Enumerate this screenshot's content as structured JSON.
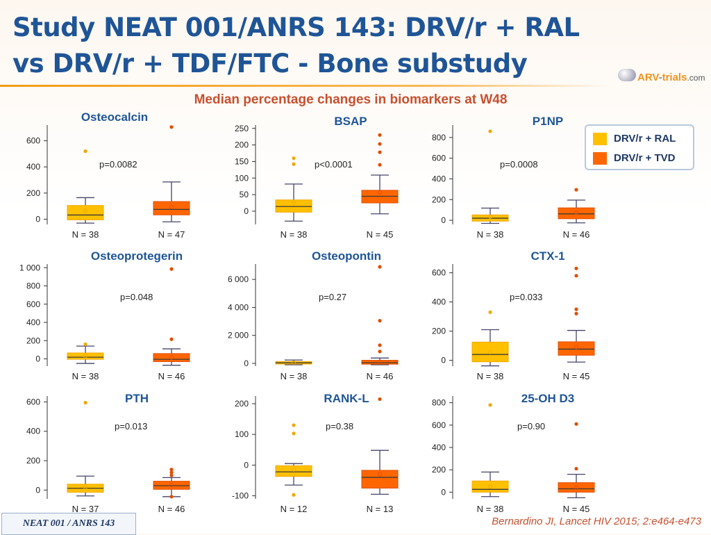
{
  "header": {
    "title": "Study NEAT 001/ANRS 143: DRV/r + RAL vs DRV/r + TDF/FTC - Bone substudy",
    "logo": {
      "brand": "ARV",
      "dash": "-",
      "suffix": "trials",
      "domain": ".com"
    }
  },
  "subtitle": "Median percentage changes in biomarkers at W48",
  "legend": {
    "items": [
      {
        "label": "DRV/r + RAL",
        "color": "#FFC000"
      },
      {
        "label": "DRV/r + TVD",
        "color": "#FF6600"
      }
    ]
  },
  "colors": {
    "ral_fill": "#FFC000",
    "ral_stroke": "#F0A800",
    "tvd_fill": "#FF6600",
    "tvd_stroke": "#E04E00",
    "whisker": "#44446a",
    "axis": "#333333",
    "median": "#3a3a3a"
  },
  "chart_data": [
    {
      "type": "boxplot",
      "title": "Osteocalcin",
      "pvalue": "p=0.0082",
      "ylim": [
        -40,
        720
      ],
      "yticks": [
        {
          "v": 0,
          "l": "0"
        },
        {
          "v": 200,
          "l": "200"
        },
        {
          "v": 400,
          "l": "400"
        },
        {
          "v": 600,
          "l": "600"
        }
      ],
      "groups": [
        {
          "series": "DRV/r + RAL",
          "n_label": "N = 38",
          "whisker_low": -30,
          "q1": -5,
          "median": 32,
          "q3": 105,
          "whisker_high": 165,
          "mean": 65,
          "outliers": [
            520
          ]
        },
        {
          "series": "DRV/r + TVD",
          "n_label": "N = 47",
          "whisker_low": -20,
          "q1": 33,
          "median": 75,
          "q3": 135,
          "whisker_high": 285,
          "mean": 92,
          "outliers": [
            705
          ]
        }
      ]
    },
    {
      "type": "boxplot",
      "title": "BSAP",
      "pvalue": "p<0.0001",
      "ylim": [
        -40,
        260
      ],
      "yticks": [
        {
          "v": 0,
          "l": "0"
        },
        {
          "v": 50,
          "l": "50"
        },
        {
          "v": 100,
          "l": "100"
        },
        {
          "v": 150,
          "l": "150"
        },
        {
          "v": 200,
          "l": "200"
        },
        {
          "v": 250,
          "l": "250"
        }
      ],
      "groups": [
        {
          "series": "DRV/r + RAL",
          "n_label": "N = 38",
          "whisker_low": -30,
          "q1": -3,
          "median": 14,
          "q3": 34,
          "whisker_high": 82,
          "mean": 25,
          "outliers": [
            142,
            160
          ]
        },
        {
          "series": "DRV/r + TVD",
          "n_label": "N = 45",
          "whisker_low": -8,
          "q1": 25,
          "median": 45,
          "q3": 63,
          "whisker_high": 109,
          "mean": 57,
          "outliers": [
            140,
            178,
            203,
            230
          ]
        }
      ]
    },
    {
      "type": "boxplot",
      "title": "P1NP",
      "pvalue": "p=0.0008",
      "ylim": [
        -40,
        920
      ],
      "yticks": [
        {
          "v": 0,
          "l": "0"
        },
        {
          "v": 200,
          "l": "200"
        },
        {
          "v": 400,
          "l": "400"
        },
        {
          "v": 600,
          "l": "600"
        },
        {
          "v": 800,
          "l": "800"
        }
      ],
      "groups": [
        {
          "series": "DRV/r + RAL",
          "n_label": "N = 38",
          "whisker_low": -30,
          "q1": -8,
          "median": 20,
          "q3": 52,
          "whisker_high": 118,
          "mean": 35,
          "outliers": [
            860
          ]
        },
        {
          "series": "DRV/r + TVD",
          "n_label": "N = 46",
          "whisker_low": -25,
          "q1": 15,
          "median": 62,
          "q3": 120,
          "whisker_high": 195,
          "mean": 75,
          "outliers": [
            295
          ]
        }
      ]
    },
    {
      "type": "boxplot",
      "title": "Osteoprotegerin",
      "pvalue": "p=0.048",
      "ylim": [
        -80,
        1040
      ],
      "yticks": [
        {
          "v": 0,
          "l": "0"
        },
        {
          "v": 200,
          "l": "200"
        },
        {
          "v": 400,
          "l": "400"
        },
        {
          "v": 600,
          "l": "600"
        },
        {
          "v": 800,
          "l": "800"
        },
        {
          "v": 1000,
          "l": "1 000"
        }
      ],
      "groups": [
        {
          "series": "DRV/r + RAL",
          "n_label": "N = 38",
          "whisker_low": -50,
          "q1": -5,
          "median": 18,
          "q3": 65,
          "whisker_high": 140,
          "mean": 30,
          "outliers": [
            160
          ]
        },
        {
          "series": "DRV/r + TVD",
          "n_label": "N = 46",
          "whisker_low": -70,
          "q1": -30,
          "median": -5,
          "q3": 58,
          "whisker_high": 110,
          "mean": 15,
          "outliers": [
            215,
            985
          ]
        }
      ]
    },
    {
      "type": "boxplot",
      "title": "Osteopontin",
      "pvalue": "p=0.27",
      "ylim": [
        -200,
        7100
      ],
      "yticks": [
        {
          "v": 0,
          "l": "0"
        },
        {
          "v": 2000,
          "l": "2 000"
        },
        {
          "v": 4000,
          "l": "4 000"
        },
        {
          "v": 6000,
          "l": "6 000"
        }
      ],
      "groups": [
        {
          "series": "DRV/r + RAL",
          "n_label": "N = 38",
          "whisker_low": -100,
          "q1": -50,
          "median": 40,
          "q3": 130,
          "whisker_high": 240,
          "mean": 60,
          "outliers": []
        },
        {
          "series": "DRV/r + TVD",
          "n_label": "N = 46",
          "whisker_low": -100,
          "q1": -60,
          "median": 50,
          "q3": 220,
          "whisker_high": 380,
          "mean": 120,
          "outliers": [
            850,
            1300,
            3050,
            6900
          ]
        }
      ]
    },
    {
      "type": "boxplot",
      "title": "CTX-1",
      "pvalue": "p=0.033",
      "ylim": [
        -40,
        660
      ],
      "yticks": [
        {
          "v": 0,
          "l": "0"
        },
        {
          "v": 200,
          "l": "200"
        },
        {
          "v": 400,
          "l": "400"
        },
        {
          "v": 600,
          "l": "600"
        }
      ],
      "groups": [
        {
          "series": "DRV/r + RAL",
          "n_label": "N = 38",
          "whisker_low": -38,
          "q1": -10,
          "median": 40,
          "q3": 125,
          "whisker_high": 210,
          "mean": 55,
          "outliers": [
            330
          ]
        },
        {
          "series": "DRV/r + TVD",
          "n_label": "N = 45",
          "whisker_low": -12,
          "q1": 35,
          "median": 77,
          "q3": 127,
          "whisker_high": 205,
          "mean": 90,
          "outliers": [
            320,
            350,
            580,
            630
          ]
        }
      ]
    },
    {
      "type": "boxplot",
      "title": "PTH",
      "pvalue": "p=0.013",
      "ylim": [
        -60,
        640
      ],
      "yticks": [
        {
          "v": 0,
          "l": "0"
        },
        {
          "v": 200,
          "l": "200"
        },
        {
          "v": 400,
          "l": "400"
        },
        {
          "v": 600,
          "l": "600"
        }
      ],
      "groups": [
        {
          "series": "DRV/r + RAL",
          "n_label": "N = 37",
          "whisker_low": -40,
          "q1": -15,
          "median": 12,
          "q3": 40,
          "whisker_high": 95,
          "mean": 20,
          "outliers": [
            595
          ]
        },
        {
          "series": "DRV/r + TVD",
          "n_label": "N = 46",
          "whisker_low": -45,
          "q1": 5,
          "median": 30,
          "q3": 60,
          "whisker_high": 85,
          "mean": 35,
          "outliers": [
            100,
            120,
            140,
            -45
          ]
        }
      ]
    },
    {
      "type": "boxplot",
      "title": "RANK-L",
      "pvalue": "p=0.38",
      "ylim": [
        -110,
        225
      ],
      "yticks": [
        {
          "v": -100,
          "l": "-100"
        },
        {
          "v": 0,
          "l": "0"
        },
        {
          "v": 100,
          "l": "100"
        },
        {
          "v": 200,
          "l": "200"
        }
      ],
      "groups": [
        {
          "series": "DRV/r + RAL",
          "n_label": "N = 12",
          "whisker_low": -65,
          "q1": -37,
          "median": -22,
          "q3": -2,
          "whisker_high": 5,
          "mean": -15,
          "outliers": [
            103,
            130,
            -97
          ]
        },
        {
          "series": "DRV/r + TVD",
          "n_label": "N = 13",
          "whisker_low": -95,
          "q1": -75,
          "median": -40,
          "q3": -17,
          "whisker_high": 48,
          "mean": -30,
          "outliers": [
            215
          ]
        }
      ]
    },
    {
      "type": "boxplot",
      "title": "25-OH D3",
      "pvalue": "p=0.90",
      "ylim": [
        -60,
        860
      ],
      "yticks": [
        {
          "v": 0,
          "l": "0"
        },
        {
          "v": 200,
          "l": "200"
        },
        {
          "v": 400,
          "l": "400"
        },
        {
          "v": 600,
          "l": "600"
        },
        {
          "v": 800,
          "l": "800"
        }
      ],
      "groups": [
        {
          "series": "DRV/r + RAL",
          "n_label": "N = 38",
          "whisker_low": -40,
          "q1": 0,
          "median": 25,
          "q3": 100,
          "whisker_high": 180,
          "mean": 50,
          "outliers": [
            780
          ]
        },
        {
          "series": "DRV/r + TVD",
          "n_label": "N = 45",
          "whisker_low": -50,
          "q1": 0,
          "median": 30,
          "q3": 85,
          "whisker_high": 160,
          "mean": 40,
          "outliers": [
            210,
            610
          ]
        }
      ]
    }
  ],
  "footer": {
    "study_label": "NEAT 001 / ANRS 143",
    "citation": "Bernardino JI, Lancet HIV 2015; 2:e464-e473"
  }
}
